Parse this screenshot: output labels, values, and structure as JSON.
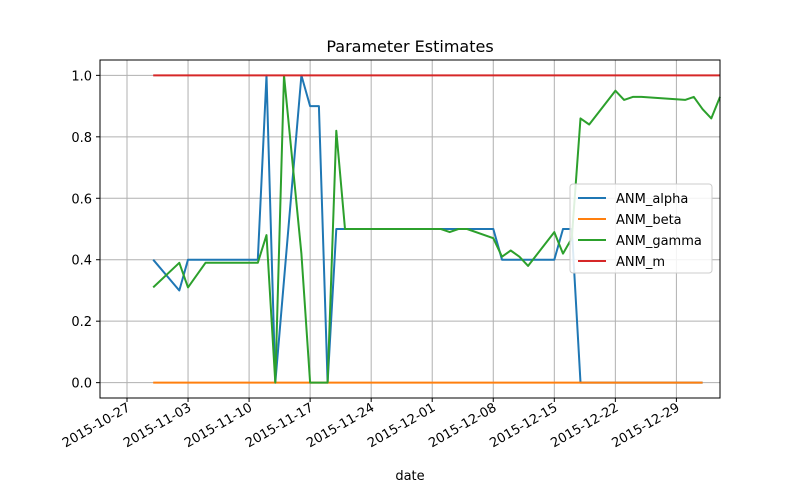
{
  "chart_data": {
    "type": "line",
    "title": "Parameter Estimates",
    "xlabel": "date",
    "ylabel": "",
    "x_axis_type": "date",
    "xlim": [
      "2015-10-27",
      "2016-01-03"
    ],
    "ylim": [
      -0.05,
      1.05
    ],
    "x_ticks": [
      "2015-10-27",
      "2015-11-03",
      "2015-11-10",
      "2015-11-17",
      "2015-11-24",
      "2015-12-01",
      "2015-12-08",
      "2015-12-15",
      "2015-12-22",
      "2015-12-29"
    ],
    "y_ticks": [
      0.0,
      0.2,
      0.4,
      0.6,
      0.8,
      1.0
    ],
    "y_tick_labels": [
      "0.0",
      "0.2",
      "0.4",
      "0.6",
      "0.8",
      "1.0"
    ],
    "grid": true,
    "legend_position": "center-right",
    "series": [
      {
        "name": "ANM_alpha",
        "color": "#1f77b4",
        "points": [
          [
            "2015-10-30",
            0.4
          ],
          [
            "2015-11-02",
            0.3
          ],
          [
            "2015-11-03",
            0.4
          ],
          [
            "2015-11-04",
            0.4
          ],
          [
            "2015-11-10",
            0.4
          ],
          [
            "2015-11-11",
            0.4
          ],
          [
            "2015-11-12",
            1.0
          ],
          [
            "2015-11-13",
            0.0
          ],
          [
            "2015-11-16",
            1.0
          ],
          [
            "2015-11-17",
            0.9
          ],
          [
            "2015-11-18",
            0.9
          ],
          [
            "2015-11-19",
            0.0
          ],
          [
            "2015-11-20",
            0.5
          ],
          [
            "2015-12-07",
            0.5
          ],
          [
            "2015-12-08",
            0.5
          ],
          [
            "2015-12-09",
            0.4
          ],
          [
            "2015-12-11",
            0.4
          ],
          [
            "2015-12-15",
            0.4
          ],
          [
            "2015-12-16",
            0.5
          ],
          [
            "2015-12-17",
            0.5
          ],
          [
            "2015-12-18",
            0.0
          ],
          [
            "2016-01-01",
            0.0
          ]
        ]
      },
      {
        "name": "ANM_beta",
        "color": "#ff7f0e",
        "points": [
          [
            "2015-10-30",
            0.0
          ],
          [
            "2016-01-01",
            0.0
          ]
        ]
      },
      {
        "name": "ANM_gamma",
        "color": "#2ca02c",
        "points": [
          [
            "2015-10-30",
            0.31
          ],
          [
            "2015-11-02",
            0.39
          ],
          [
            "2015-11-03",
            0.31
          ],
          [
            "2015-11-05",
            0.39
          ],
          [
            "2015-11-11",
            0.39
          ],
          [
            "2015-11-12",
            0.48
          ],
          [
            "2015-11-13",
            0.0
          ],
          [
            "2015-11-14",
            1.0
          ],
          [
            "2015-11-16",
            0.42
          ],
          [
            "2015-11-17",
            0.0
          ],
          [
            "2015-11-19",
            0.0
          ],
          [
            "2015-11-20",
            0.82
          ],
          [
            "2015-11-21",
            0.5
          ],
          [
            "2015-12-02",
            0.5
          ],
          [
            "2015-12-03",
            0.49
          ],
          [
            "2015-12-04",
            0.5
          ],
          [
            "2015-12-05",
            0.5
          ],
          [
            "2015-12-08",
            0.47
          ],
          [
            "2015-12-09",
            0.41
          ],
          [
            "2015-12-10",
            0.43
          ],
          [
            "2015-12-11",
            0.41
          ],
          [
            "2015-12-12",
            0.38
          ],
          [
            "2015-12-15",
            0.49
          ],
          [
            "2015-12-16",
            0.42
          ],
          [
            "2015-12-17",
            0.47
          ],
          [
            "2015-12-18",
            0.86
          ],
          [
            "2015-12-19",
            0.84
          ],
          [
            "2015-12-22",
            0.95
          ],
          [
            "2015-12-23",
            0.92
          ],
          [
            "2015-12-24",
            0.93
          ],
          [
            "2015-12-25",
            0.93
          ],
          [
            "2015-12-30",
            0.92
          ],
          [
            "2015-12-31",
            0.93
          ],
          [
            "2016-01-01",
            0.89
          ],
          [
            "2016-01-02",
            0.86
          ],
          [
            "2016-01-03",
            0.93
          ]
        ]
      },
      {
        "name": "ANM_m",
        "color": "#d62728",
        "points": [
          [
            "2015-10-30",
            1.0
          ],
          [
            "2016-01-03",
            1.0
          ]
        ]
      }
    ]
  }
}
